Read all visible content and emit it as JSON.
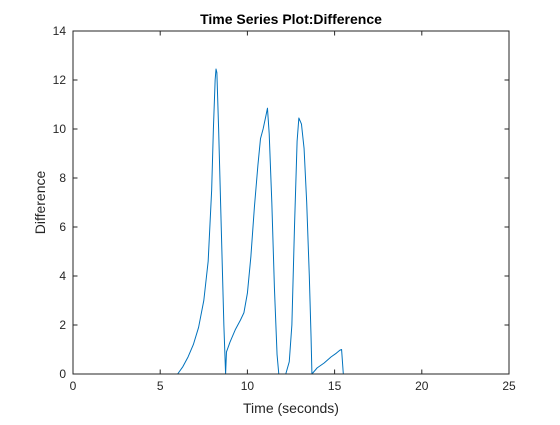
{
  "chart_data": {
    "type": "line",
    "title": "Time Series Plot:Difference",
    "xlabel": "Time (seconds)",
    "ylabel": "Difference",
    "xlim": [
      0,
      25
    ],
    "ylim": [
      0,
      14
    ],
    "xticks": [
      0,
      5,
      10,
      15,
      20,
      25
    ],
    "yticks": [
      0,
      2,
      4,
      6,
      8,
      10,
      12,
      14
    ],
    "grid": false,
    "legend": "none",
    "series": [
      {
        "color": "#0072BD",
        "points": [
          [
            0,
            0
          ],
          [
            6.0,
            0
          ],
          [
            6.3,
            0.3
          ],
          [
            6.6,
            0.7
          ],
          [
            6.9,
            1.2
          ],
          [
            7.2,
            1.9
          ],
          [
            7.5,
            3.0
          ],
          [
            7.75,
            4.6
          ],
          [
            7.95,
            7.5
          ],
          [
            8.05,
            10.0
          ],
          [
            8.15,
            12.0
          ],
          [
            8.2,
            12.45
          ],
          [
            8.25,
            12.3
          ],
          [
            8.35,
            10.0
          ],
          [
            8.5,
            6.0
          ],
          [
            8.65,
            2.0
          ],
          [
            8.75,
            0
          ],
          [
            8.8,
            0.9
          ],
          [
            9.0,
            1.3
          ],
          [
            9.3,
            1.8
          ],
          [
            9.6,
            2.2
          ],
          [
            9.8,
            2.5
          ],
          [
            10.0,
            3.3
          ],
          [
            10.2,
            4.8
          ],
          [
            10.4,
            6.8
          ],
          [
            10.6,
            8.5
          ],
          [
            10.75,
            9.6
          ],
          [
            10.9,
            10.0
          ],
          [
            11.05,
            10.5
          ],
          [
            11.15,
            10.85
          ],
          [
            11.25,
            9.8
          ],
          [
            11.4,
            7.0
          ],
          [
            11.55,
            3.5
          ],
          [
            11.7,
            0.8
          ],
          [
            11.8,
            0
          ],
          [
            12.2,
            0
          ],
          [
            12.4,
            0.5
          ],
          [
            12.55,
            2.0
          ],
          [
            12.7,
            6.0
          ],
          [
            12.85,
            9.5
          ],
          [
            12.95,
            10.45
          ],
          [
            13.1,
            10.2
          ],
          [
            13.25,
            9.2
          ],
          [
            13.4,
            7.0
          ],
          [
            13.55,
            4.0
          ],
          [
            13.65,
            1.5
          ],
          [
            13.7,
            0
          ],
          [
            14.0,
            0.25
          ],
          [
            14.4,
            0.45
          ],
          [
            14.8,
            0.7
          ],
          [
            15.1,
            0.85
          ],
          [
            15.3,
            0.97
          ],
          [
            15.4,
            1.0
          ],
          [
            15.5,
            0
          ],
          [
            25,
            0
          ]
        ]
      }
    ]
  }
}
